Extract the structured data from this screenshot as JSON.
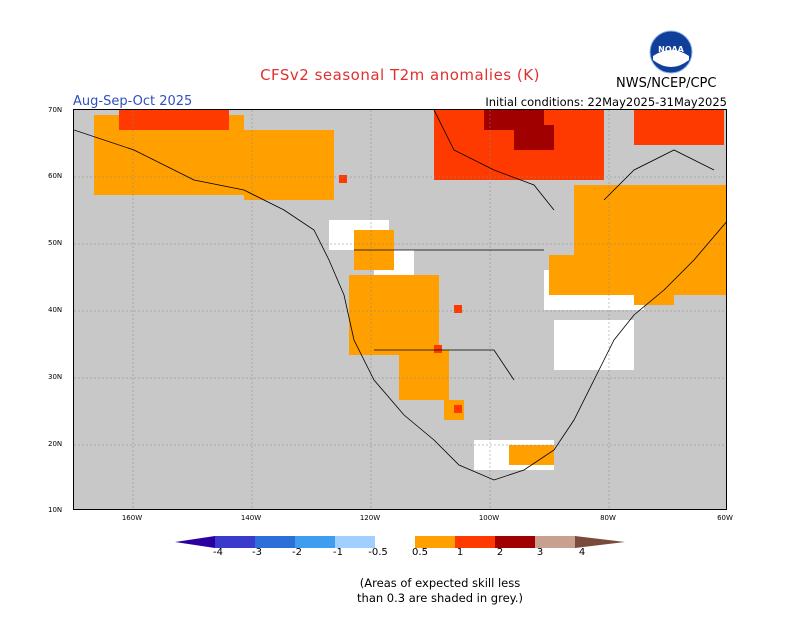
{
  "title": "CFSv2 seasonal T2m anomalies (K)",
  "agency": "NWS/NCEP/CPC",
  "logo_text": "NOAA",
  "season": "Aug-Sep-Oct 2025",
  "initial_conditions": "Initial conditions: 22May2025-31May2025",
  "lat_labels": [
    "70N",
    "60N",
    "50N",
    "40N",
    "30N",
    "20N",
    "10N"
  ],
  "lon_labels": [
    "160W",
    "140W",
    "120W",
    "100W",
    "80W",
    "60W"
  ],
  "colorbar_labels": [
    "-4",
    "-3",
    "-2",
    "-1",
    "-0.5",
    "0.5",
    "1",
    "2",
    "3",
    "4"
  ],
  "note_line1": "(Areas of expected skill less",
  "note_line2": "than 0.3 are shaded in grey.)",
  "colors": {
    "title": "#e03030",
    "season": "#3050c0",
    "grey": "#c8c8c8",
    "orange": "#ff9f00",
    "red_orange": "#ff3a00",
    "dark_red": "#a00000",
    "white": "#ffffff"
  }
}
